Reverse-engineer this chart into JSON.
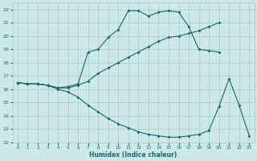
{
  "xlabel": "Humidex (Indice chaleur)",
  "bg_color": "#cce8e8",
  "grid_color": "#aacccc",
  "line_color": "#1a6868",
  "xlim": [
    -0.5,
    23.5
  ],
  "ylim": [
    12,
    22.5
  ],
  "yticks": [
    12,
    13,
    14,
    15,
    16,
    17,
    18,
    19,
    20,
    21,
    22
  ],
  "xticks": [
    0,
    1,
    2,
    3,
    4,
    5,
    6,
    7,
    8,
    9,
    10,
    11,
    12,
    13,
    14,
    15,
    16,
    17,
    18,
    19,
    20,
    21,
    22,
    23
  ],
  "line1_x": [
    0,
    1,
    2,
    3,
    4,
    5,
    6,
    7,
    8,
    9,
    10,
    11,
    12,
    13,
    14,
    15,
    16,
    17,
    18,
    19,
    20
  ],
  "line1_y": [
    16.5,
    16.4,
    16.4,
    16.3,
    16.1,
    16.2,
    16.4,
    18.8,
    19.0,
    19.9,
    20.5,
    21.9,
    21.9,
    21.5,
    21.8,
    21.9,
    21.8,
    20.7,
    19.0,
    18.9,
    18.8
  ],
  "line2_x": [
    0,
    1,
    2,
    3,
    4,
    5,
    6,
    7,
    8,
    9,
    10,
    11,
    12,
    13,
    14,
    15,
    16,
    17,
    18,
    19,
    20
  ],
  "line2_y": [
    16.5,
    16.4,
    16.4,
    16.3,
    16.1,
    16.1,
    16.3,
    16.6,
    17.2,
    17.6,
    18.0,
    18.4,
    18.8,
    19.2,
    19.6,
    19.9,
    20.0,
    20.2,
    20.4,
    20.7,
    21.0
  ],
  "line3_x": [
    0,
    1,
    2,
    3,
    4,
    5,
    6,
    7,
    8,
    9,
    10,
    11,
    12,
    13,
    14,
    15,
    16,
    17,
    18,
    19,
    20,
    21,
    22,
    23
  ],
  "line3_y": [
    16.5,
    16.4,
    16.4,
    16.3,
    16.0,
    15.8,
    15.4,
    14.8,
    14.3,
    13.8,
    13.4,
    13.1,
    12.8,
    12.6,
    12.5,
    12.4,
    12.4,
    12.5,
    12.6,
    12.9,
    14.7,
    16.8,
    14.8,
    12.5
  ]
}
